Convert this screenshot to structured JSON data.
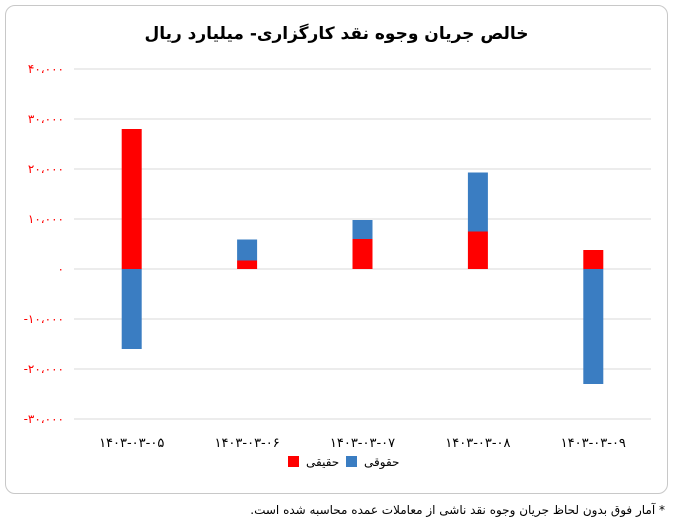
{
  "chart_data": {
    "type": "bar",
    "stacked": true,
    "title": "خالص جریان وجوه نقد کارگزاری- میلیارد ریال",
    "categories": [
      "۱۴۰۳-۰۳-۰۵",
      "۱۴۰۳-۰۳-۰۶",
      "۱۴۰۳-۰۳-۰۷",
      "۱۴۰۳-۰۳-۰۸",
      "۱۴۰۳-۰۳-۰۹"
    ],
    "series": [
      {
        "name": "حقیقی",
        "color": "#ff0000",
        "values": [
          28000,
          1700,
          6000,
          7500,
          3800
        ]
      },
      {
        "name": "حقوقی",
        "color": "#3a7dc2",
        "values": [
          -16000,
          4200,
          3800,
          11800,
          -23000
        ]
      }
    ],
    "ylim": [
      -30000,
      40000
    ],
    "yticks": [
      40000,
      30000,
      20000,
      10000,
      0,
      -10000,
      -20000,
      -30000
    ],
    "ytick_labels": [
      "۴۰،۰۰۰",
      "۳۰،۰۰۰",
      "۲۰،۰۰۰",
      "۱۰،۰۰۰",
      "۰",
      "-۱۰،۰۰۰",
      "-۲۰،۰۰۰",
      "-۳۰،۰۰۰"
    ],
    "grid": true,
    "legend_position": "bottom-center",
    "xlabel": "",
    "ylabel": ""
  },
  "footnote": "* آمار فوق بدون لحاظ جریان وجوه نقد ناشی از معاملات عمده محاسبه شده است.",
  "colors": {
    "grid": "#d9d9d9",
    "tick_text": "#ff0000",
    "category_text": "#000000"
  }
}
